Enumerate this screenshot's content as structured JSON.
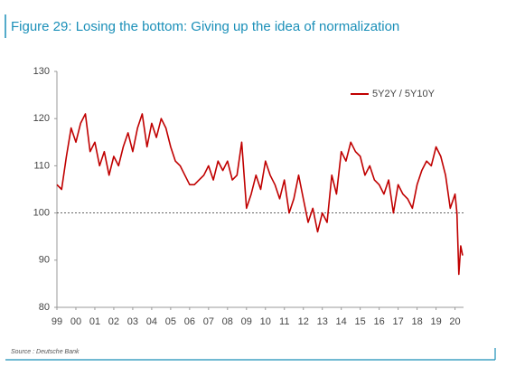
{
  "chart_data": {
    "type": "line",
    "title": "Figure 29: Losing the bottom: Giving up the idea of normalization",
    "source": "Source : Deutsche Bank",
    "x": [
      1999.0,
      1999.25,
      1999.5,
      1999.75,
      2000.0,
      2000.25,
      2000.5,
      2000.75,
      2001.0,
      2001.25,
      2001.5,
      2001.75,
      2002.0,
      2002.25,
      2002.5,
      2002.75,
      2003.0,
      2003.25,
      2003.5,
      2003.75,
      2004.0,
      2004.25,
      2004.5,
      2004.75,
      2005.0,
      2005.25,
      2005.5,
      2005.75,
      2006.0,
      2006.25,
      2006.5,
      2006.75,
      2007.0,
      2007.25,
      2007.5,
      2007.75,
      2008.0,
      2008.25,
      2008.5,
      2008.75,
      2009.0,
      2009.25,
      2009.5,
      2009.75,
      2010.0,
      2010.25,
      2010.5,
      2010.75,
      2011.0,
      2011.25,
      2011.5,
      2011.75,
      2012.0,
      2012.25,
      2012.5,
      2012.75,
      2013.0,
      2013.25,
      2013.5,
      2013.75,
      2014.0,
      2014.25,
      2014.5,
      2014.75,
      2015.0,
      2015.25,
      2015.5,
      2015.75,
      2016.0,
      2016.25,
      2016.5,
      2016.75,
      2017.0,
      2017.25,
      2017.5,
      2017.75,
      2018.0,
      2018.25,
      2018.5,
      2018.75,
      2019.0,
      2019.25,
      2019.5,
      2019.75,
      2020.0,
      2020.1,
      2020.2,
      2020.3,
      2020.4
    ],
    "series": [
      {
        "name": "5Y2Y / 5Y10Y",
        "color": "#c00000",
        "values": [
          106,
          105,
          112,
          118,
          115,
          119,
          121,
          113,
          115,
          110,
          113,
          108,
          112,
          110,
          114,
          117,
          113,
          118,
          121,
          114,
          119,
          116,
          120,
          118,
          114,
          111,
          110,
          108,
          106,
          106,
          107,
          108,
          110,
          107,
          111,
          109,
          111,
          107,
          108,
          115,
          101,
          104,
          108,
          105,
          111,
          108,
          106,
          103,
          107,
          100,
          103,
          108,
          103,
          98,
          101,
          96,
          100,
          98,
          108,
          104,
          113,
          111,
          115,
          113,
          112,
          108,
          110,
          107,
          106,
          104,
          107,
          100,
          106,
          104,
          103,
          101,
          106,
          109,
          111,
          110,
          114,
          112,
          108,
          101,
          104,
          100,
          87,
          93,
          91
        ]
      }
    ],
    "xlim": [
      1999.0,
      2020.45
    ],
    "xticks": [
      {
        "value": 1999,
        "label": "99"
      },
      {
        "value": 2000,
        "label": "00"
      },
      {
        "value": 2001,
        "label": "01"
      },
      {
        "value": 2002,
        "label": "02"
      },
      {
        "value": 2003,
        "label": "03"
      },
      {
        "value": 2004,
        "label": "04"
      },
      {
        "value": 2005,
        "label": "05"
      },
      {
        "value": 2006,
        "label": "06"
      },
      {
        "value": 2007,
        "label": "07"
      },
      {
        "value": 2008,
        "label": "08"
      },
      {
        "value": 2009,
        "label": "09"
      },
      {
        "value": 2010,
        "label": "10"
      },
      {
        "value": 2011,
        "label": "11"
      },
      {
        "value": 2012,
        "label": "12"
      },
      {
        "value": 2013,
        "label": "13"
      },
      {
        "value": 2014,
        "label": "14"
      },
      {
        "value": 2015,
        "label": "15"
      },
      {
        "value": 2016,
        "label": "16"
      },
      {
        "value": 2017,
        "label": "17"
      },
      {
        "value": 2018,
        "label": "18"
      },
      {
        "value": 2019,
        "label": "19"
      },
      {
        "value": 2020,
        "label": "20"
      }
    ],
    "ylim": [
      80,
      130
    ],
    "yticks": [
      80,
      90,
      100,
      110,
      120,
      130
    ],
    "reference_line": 100,
    "legend": "upper right"
  }
}
